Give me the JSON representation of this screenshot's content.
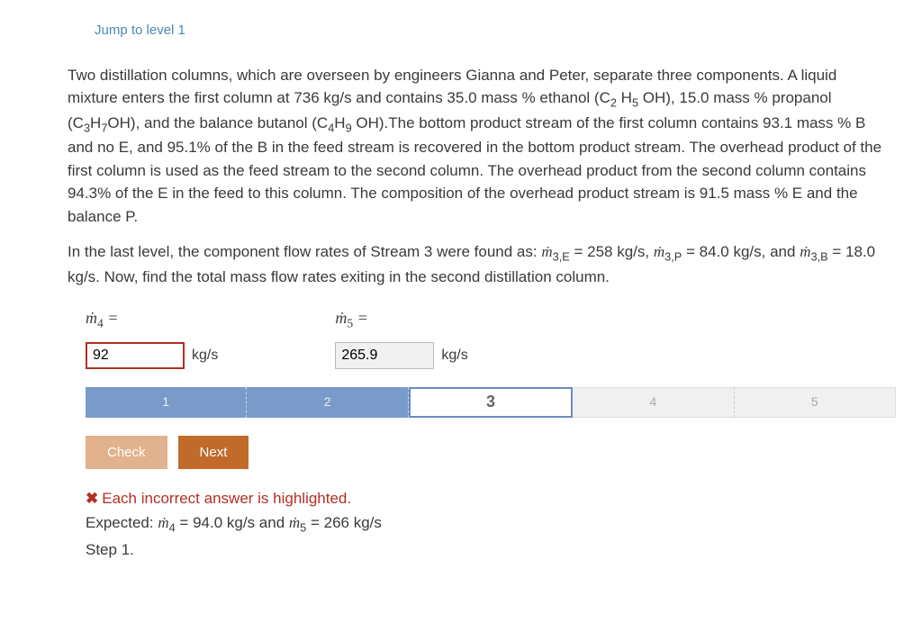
{
  "jump_link": "Jump to level 1",
  "problem": {
    "p1_a": "Two distillation columns, which are overseen by engineers Gianna and Peter, separate three components. A liquid mixture enters the first column at 736 kg/s and contains 35.0 mass % ethanol (C",
    "p1_b": " OH), 15.0 mass % propanol (C",
    "p1_c": "OH), and the balance butanol (C",
    "p1_d": " OH).The bottom product stream of the first column contains 93.1 mass % B and no E, and 95.1% of the B in the feed stream is recovered in the bottom product stream. The overhead product of the first column is used as the feed stream to the second column. The overhead product from the second column contains 94.3% of the E in the feed to this column. The composition of the overhead product stream is 91.5 mass % E and the balance P.",
    "p2_a": "In the last level, the component flow rates of Stream 3 were found as: ",
    "p2_b": " = 258 kg/s, ",
    "p2_c": " = 84.0 kg/s, and ",
    "p2_d": " = 18.0 kg/s. Now, find the total mass flow rates exiting in the second distillation column."
  },
  "answers": {
    "m4": {
      "label_var": "ṁ",
      "label_sub": "4",
      "eq": " =",
      "value": "92",
      "unit": "kg/s",
      "wrong": true
    },
    "m5": {
      "label_var": "ṁ",
      "label_sub": "5",
      "eq": " =",
      "value": "265.9",
      "unit": "kg/s",
      "wrong": false
    }
  },
  "steps": [
    "1",
    "2",
    "3",
    "4",
    "5"
  ],
  "current_step": 3,
  "buttons": {
    "check": "Check",
    "next": "Next"
  },
  "feedback": {
    "line1": "Each incorrect answer is highlighted.",
    "line2_a": "Expected: ",
    "line2_b": " = 94.0 kg/s and ",
    "line2_c": " = 266 kg/s",
    "line3": "Step 1."
  },
  "colors": {
    "link": "#4a8ab0",
    "error": "#b03024",
    "step_done": "#7a9bc9",
    "step_current_border": "#6a8cc0",
    "btn_check": "#e0b28e",
    "btn_next": "#c26a2a"
  }
}
